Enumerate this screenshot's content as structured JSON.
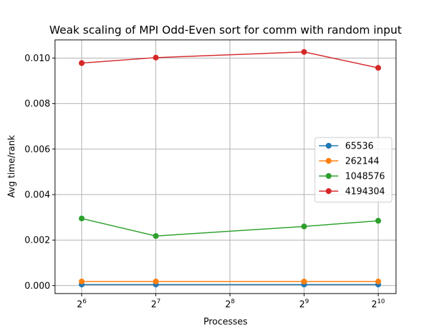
{
  "chart_data": {
    "type": "line",
    "title": "Weak scaling of MPI Odd-Even sort for comm with random input",
    "xlabel": "Processes",
    "ylabel": "Avg time/rank",
    "x_scale": "log2",
    "x": [
      64,
      128,
      512,
      1024
    ],
    "xticks": [
      {
        "value": 64,
        "base": "2",
        "exp": "6"
      },
      {
        "value": 128,
        "base": "2",
        "exp": "7"
      },
      {
        "value": 256,
        "base": "2",
        "exp": "8"
      },
      {
        "value": 512,
        "base": "2",
        "exp": "9"
      },
      {
        "value": 1024,
        "base": "2",
        "exp": "10"
      }
    ],
    "yticks": [
      {
        "value": 0.0,
        "label": "0.000"
      },
      {
        "value": 0.002,
        "label": "0.002"
      },
      {
        "value": 0.004,
        "label": "0.004"
      },
      {
        "value": 0.006,
        "label": "0.006"
      },
      {
        "value": 0.008,
        "label": "0.008"
      },
      {
        "value": 0.01,
        "label": "0.010"
      }
    ],
    "ylim": [
      -0.00035,
      0.0108
    ],
    "grid": true,
    "legend_position": "center-right",
    "series": [
      {
        "name": "65536",
        "color": "#1f77b4",
        "values": [
          5e-05,
          5e-05,
          5e-05,
          5e-05
        ]
      },
      {
        "name": "262144",
        "color": "#ff7f0e",
        "values": [
          0.00018,
          0.00018,
          0.00018,
          0.00018
        ]
      },
      {
        "name": "1048576",
        "color": "#2ca02c",
        "values": [
          0.00295,
          0.00218,
          0.0026,
          0.00285
        ]
      },
      {
        "name": "4194304",
        "color": "#d62728",
        "values": [
          0.00978,
          0.01002,
          0.01027,
          0.00957
        ]
      }
    ]
  }
}
